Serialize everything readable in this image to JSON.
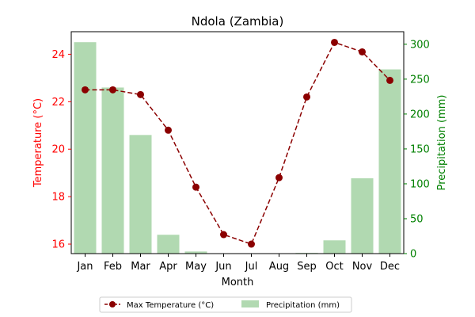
{
  "chart_data": {
    "type": "bar+line",
    "title": "Ndola (Zambia)",
    "xlabel": "Month",
    "categories": [
      "Jan",
      "Feb",
      "Mar",
      "Apr",
      "May",
      "Jun",
      "Jul",
      "Aug",
      "Sep",
      "Oct",
      "Nov",
      "Dec"
    ],
    "series": [
      {
        "name": "Max Temperature (°C)",
        "type": "line",
        "axis": "left",
        "values": [
          22.5,
          22.5,
          22.3,
          20.8,
          18.4,
          16.4,
          16.0,
          18.8,
          22.2,
          24.5,
          24.1,
          22.9
        ]
      },
      {
        "name": "Precipitation (mm)",
        "type": "bar",
        "axis": "right",
        "values": [
          303,
          238,
          170,
          27,
          3,
          0,
          0,
          0,
          1,
          19,
          108,
          264
        ]
      }
    ],
    "ylabel_left": "Temperature (°C)",
    "ylabel_right": "Precipitation (mm)",
    "ylim_left": [
      15.6,
      24.95
    ],
    "ylim_right": [
      0,
      318
    ],
    "yticks_left": [
      "16",
      "18",
      "20",
      "22",
      "24"
    ],
    "yticks_right": [
      "0",
      "50",
      "100",
      "150",
      "200",
      "250",
      "300"
    ],
    "legend_position": "bottom-center",
    "colors": {
      "line": "#8b0000",
      "bar": "#b1d9b1",
      "left_axis": "#ff0000",
      "right_axis": "#008000"
    }
  }
}
